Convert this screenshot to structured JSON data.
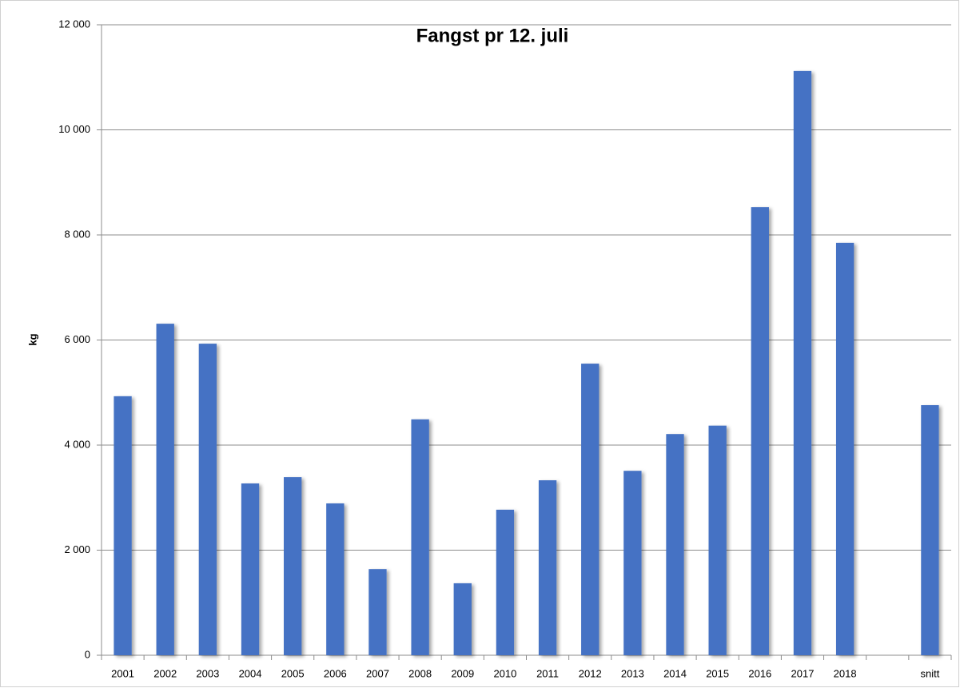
{
  "chart_data": {
    "type": "bar",
    "title": "Fangst pr 12. juli",
    "y_label": "kg",
    "categories": [
      "2001",
      "2002",
      "2003",
      "2004",
      "2005",
      "2006",
      "2007",
      "2008",
      "2009",
      "2010",
      "2011",
      "2012",
      "2013",
      "2014",
      "2015",
      "2016",
      "2017",
      "2018",
      null,
      "snitt"
    ],
    "values": [
      4930,
      6310,
      5930,
      3270,
      3390,
      2890,
      1640,
      4490,
      1370,
      2770,
      3330,
      5550,
      3510,
      4210,
      4370,
      8530,
      11120,
      7850,
      null,
      4760
    ],
    "color": "#4472c4",
    "ylim": [
      0,
      12000
    ],
    "yticks": [
      0,
      {
        "value": 2000,
        "label": "2 000"
      },
      {
        "value": 4000,
        "label": "4 000"
      },
      {
        "value": 6000,
        "label": "6 000"
      },
      {
        "value": 8000,
        "label": "8 000"
      },
      {
        "value": 10000,
        "label": "10 000"
      },
      {
        "value": 12000,
        "label": "12 000"
      }
    ],
    "grid": true
  }
}
